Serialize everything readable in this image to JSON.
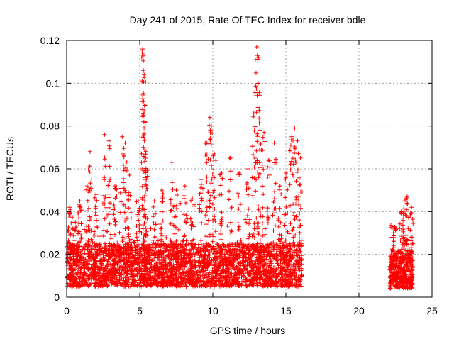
{
  "chart_data": {
    "type": "scatter",
    "title": "Day 241 of 2015, Rate Of TEC Index for receiver bdle",
    "xlabel": "GPS time / hours",
    "ylabel": "ROTI / TECUs",
    "xlim": [
      0,
      25
    ],
    "ylim": [
      0,
      0.12
    ],
    "xticks": [
      0,
      5,
      10,
      15,
      20,
      25
    ],
    "yticks": [
      0,
      0.02,
      0.04,
      0.06,
      0.08,
      0.1,
      0.12
    ],
    "xtick_labels": [
      "0",
      "5",
      "10",
      "15",
      "20",
      "25"
    ],
    "ytick_labels": [
      "0",
      "0.02",
      "0.04",
      "0.06",
      "0.08",
      "0.1",
      "0.12"
    ],
    "grid": true,
    "marker": "plus",
    "color": "#ff0000",
    "series": [
      {
        "segments": [
          {
            "x_range": [
              0.0,
              16.1
            ],
            "typical_range": [
              0.005,
              0.025
            ],
            "spread_max": 0.045
          },
          {
            "x_range": [
              22.1,
              23.7
            ],
            "typical_range": [
              0.004,
              0.022
            ],
            "spread_max": 0.035
          }
        ],
        "peaks": [
          {
            "x": 0.2,
            "y": 0.042
          },
          {
            "x": 0.5,
            "y": 0.035
          },
          {
            "x": 0.9,
            "y": 0.045
          },
          {
            "x": 1.4,
            "y": 0.052
          },
          {
            "x": 1.6,
            "y": 0.068
          },
          {
            "x": 2.0,
            "y": 0.048
          },
          {
            "x": 2.6,
            "y": 0.076
          },
          {
            "x": 2.9,
            "y": 0.073
          },
          {
            "x": 3.3,
            "y": 0.052
          },
          {
            "x": 3.8,
            "y": 0.075
          },
          {
            "x": 4.0,
            "y": 0.072
          },
          {
            "x": 4.3,
            "y": 0.057
          },
          {
            "x": 4.9,
            "y": 0.045
          },
          {
            "x": 5.2,
            "y": 0.116
          },
          {
            "x": 5.25,
            "y": 0.106
          },
          {
            "x": 5.3,
            "y": 0.104
          },
          {
            "x": 5.3,
            "y": 0.087
          },
          {
            "x": 5.35,
            "y": 0.082
          },
          {
            "x": 5.4,
            "y": 0.065
          },
          {
            "x": 6.0,
            "y": 0.045
          },
          {
            "x": 6.5,
            "y": 0.05
          },
          {
            "x": 7.2,
            "y": 0.063
          },
          {
            "x": 7.5,
            "y": 0.05
          },
          {
            "x": 8.1,
            "y": 0.052
          },
          {
            "x": 8.6,
            "y": 0.046
          },
          {
            "x": 9.2,
            "y": 0.055
          },
          {
            "x": 9.6,
            "y": 0.072
          },
          {
            "x": 9.8,
            "y": 0.084
          },
          {
            "x": 9.9,
            "y": 0.08
          },
          {
            "x": 10.1,
            "y": 0.067
          },
          {
            "x": 10.6,
            "y": 0.058
          },
          {
            "x": 11.2,
            "y": 0.065
          },
          {
            "x": 11.8,
            "y": 0.058
          },
          {
            "x": 12.4,
            "y": 0.06
          },
          {
            "x": 12.8,
            "y": 0.086
          },
          {
            "x": 13.0,
            "y": 0.117
          },
          {
            "x": 13.05,
            "y": 0.113
          },
          {
            "x": 13.1,
            "y": 0.1
          },
          {
            "x": 13.2,
            "y": 0.088
          },
          {
            "x": 13.5,
            "y": 0.077
          },
          {
            "x": 13.8,
            "y": 0.064
          },
          {
            "x": 14.2,
            "y": 0.072
          },
          {
            "x": 14.6,
            "y": 0.052
          },
          {
            "x": 15.0,
            "y": 0.058
          },
          {
            "x": 15.4,
            "y": 0.075
          },
          {
            "x": 15.6,
            "y": 0.079
          },
          {
            "x": 15.8,
            "y": 0.073
          },
          {
            "x": 16.0,
            "y": 0.065
          },
          {
            "x": 22.4,
            "y": 0.033
          },
          {
            "x": 22.9,
            "y": 0.04
          },
          {
            "x": 23.1,
            "y": 0.045
          },
          {
            "x": 23.3,
            "y": 0.047
          },
          {
            "x": 23.6,
            "y": 0.042
          }
        ]
      }
    ]
  }
}
